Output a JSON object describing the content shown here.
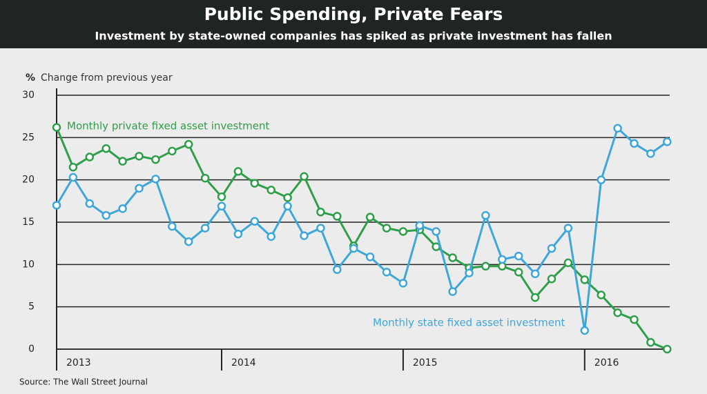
{
  "chart_data": {
    "type": "line",
    "title": "Public Spending, Private Fears",
    "subtitle": "Investment by state-owned companies has spiked as private investment has fallen",
    "y_unit": "%",
    "y_label": "Change from previous year",
    "source": "Source: The Wall Street Journal",
    "categories": [
      null,
      null,
      null,
      null,
      null,
      null,
      null,
      null,
      null,
      null,
      null,
      null,
      null,
      null,
      null,
      null,
      null,
      null,
      null,
      null,
      null,
      null,
      null,
      null,
      null,
      null,
      null,
      null,
      null,
      null,
      null,
      null,
      null,
      null,
      null,
      null,
      null,
      null
    ],
    "xticks": [
      {
        "value": 0,
        "label": "2013"
      },
      {
        "value": 10,
        "label": "2014"
      },
      {
        "value": 21,
        "label": "2015"
      },
      {
        "value": 32,
        "label": "2016"
      }
    ],
    "ylim": [
      0,
      30
    ],
    "yticks": [
      0,
      5,
      10,
      15,
      20,
      25,
      30
    ],
    "grid": true,
    "series": [
      {
        "name": "Monthly private fixed asset investment",
        "color": "#2e9e48",
        "values": [
          26.2,
          21.5,
          22.7,
          23.7,
          22.2,
          22.8,
          22.4,
          23.4,
          24.2,
          20.2,
          18.0,
          21.0,
          19.6,
          18.8,
          17.9,
          20.4,
          16.2,
          15.7,
          12.2,
          15.6,
          14.3,
          13.9,
          14.1,
          12.1,
          10.8,
          9.6,
          9.8,
          9.8,
          9.1,
          6.1,
          8.3,
          10.2,
          8.2,
          6.4,
          4.3,
          3.5,
          0.8,
          0
        ]
      },
      {
        "name": "Monthly state fixed asset investment",
        "color": "#3ea6d8",
        "values": [
          17.0,
          20.3,
          17.2,
          15.8,
          16.6,
          19.0,
          20.1,
          14.5,
          12.7,
          14.3,
          16.9,
          13.6,
          15.1,
          13.3,
          16.9,
          13.4,
          14.3,
          9.4,
          11.9,
          10.9,
          9.1,
          7.8,
          14.6,
          13.9,
          6.8,
          9.0,
          15.8,
          10.6,
          11.0,
          8.9,
          11.9,
          14.3,
          2.2,
          20.0,
          26.1,
          24.3,
          23.1,
          24.5
        ]
      }
    ]
  }
}
